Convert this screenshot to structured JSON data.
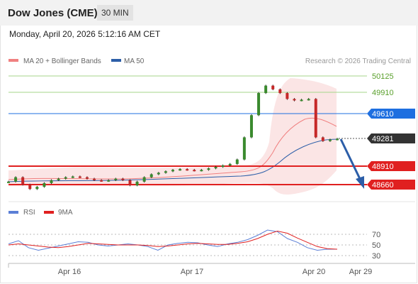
{
  "header": {
    "title": "Dow Jones (CME)",
    "interval": "30 MIN",
    "timestamp": "Monday, April 20, 2026 5:12:16 AM CET"
  },
  "legend": {
    "items": [
      {
        "label": "MA 20 + Bollinger Bands",
        "color": "#f08080"
      },
      {
        "label": "MA 50",
        "color": "#2c5ea8"
      }
    ],
    "credit": "Research © 2026 Trading Central"
  },
  "levels": [
    {
      "value": "50125",
      "kind": "resistance",
      "color": "#5aa02c"
    },
    {
      "value": "49910",
      "kind": "resistance",
      "color": "#5aa02c"
    },
    {
      "value": "49610",
      "kind": "pivot",
      "color": "#1e6fe0"
    },
    {
      "value": "49281",
      "kind": "last",
      "color": "#333333"
    },
    {
      "value": "48910",
      "kind": "support",
      "color": "#e02020"
    },
    {
      "value": "48660",
      "kind": "support",
      "color": "#e02020"
    }
  ],
  "rsi_panel": {
    "legend": [
      {
        "label": "RSI",
        "color": "#5b7fd6"
      },
      {
        "label": "9MA",
        "color": "#e02020"
      }
    ],
    "ticks": [
      "70",
      "50",
      "30"
    ]
  },
  "x_axis": {
    "ticks": [
      "Apr 16",
      "Apr 17",
      "Apr 20",
      "Apr 29"
    ]
  },
  "chart_data": {
    "type": "candlestick",
    "instrument": "Dow Jones (CME)",
    "interval": "30 MIN",
    "y_levels": [
      50125,
      49910,
      49610,
      49281,
      48910,
      48660
    ],
    "price_path": [
      48700,
      48760,
      48660,
      48600,
      48630,
      48680,
      48720,
      48740,
      48760,
      48770,
      48760,
      48740,
      48720,
      48710,
      48720,
      48740,
      48720,
      48650,
      48700,
      48760,
      48800,
      48820,
      48840,
      48860,
      48870,
      48860,
      48850,
      48860,
      48880,
      48900,
      48920,
      48940,
      49000,
      49300,
      49600,
      49900,
      50000,
      49950,
      49900,
      49820,
      49800,
      49810,
      49820,
      49300,
      49250,
      49270,
      49281
    ],
    "rsi": [
      52,
      58,
      45,
      40,
      44,
      48,
      52,
      56,
      55,
      50,
      48,
      50,
      52,
      50,
      47,
      40,
      50,
      53,
      55,
      54,
      50,
      47,
      52,
      55,
      60,
      68,
      78,
      75,
      62,
      55,
      45,
      40,
      42,
      42
    ],
    "rsi_ma": [
      50,
      52,
      50,
      48,
      46,
      45,
      47,
      50,
      53,
      52,
      51,
      50,
      50,
      50,
      49,
      47,
      48,
      50,
      52,
      53,
      52,
      51,
      51,
      53,
      56,
      62,
      70,
      76,
      72,
      63,
      55,
      47,
      43,
      42
    ],
    "rsi_levels": [
      70,
      50,
      30
    ],
    "x_ticks": [
      "Apr 16",
      "Apr 17",
      "Apr 20",
      "Apr 29"
    ]
  }
}
